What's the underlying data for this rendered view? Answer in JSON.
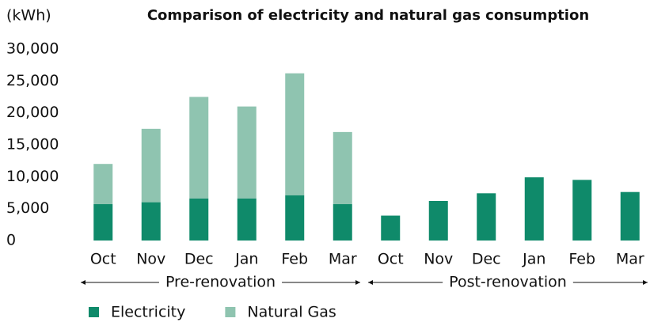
{
  "chart_data": {
    "type": "stacked_bar",
    "title": "Comparison of electricity and natural gas consumption",
    "y_label": "(kWh)",
    "categories": [
      "Oct",
      "Nov",
      "Dec",
      "Jan",
      "Feb",
      "Mar",
      "Oct",
      "Nov",
      "Dec",
      "Jan",
      "Feb",
      "Mar"
    ],
    "groups": [
      "Pre-renovation",
      "Post-renovation"
    ],
    "series": [
      {
        "name": "Electricity",
        "color": "#0f8a6a",
        "values": [
          5700,
          6000,
          6600,
          6600,
          7100,
          5700,
          3900,
          6200,
          7400,
          9900,
          9500,
          7600
        ]
      },
      {
        "name": "Natural Gas",
        "color": "#8fc4b0",
        "values": [
          6300,
          11500,
          15900,
          14400,
          19100,
          11300,
          null,
          null,
          null,
          null,
          null,
          null
        ]
      }
    ],
    "ylim": [
      0,
      30000
    ],
    "yticks": [
      0,
      {
        "value": 5000,
        "label": "5,000"
      },
      {
        "value": 10000,
        "label": "10,000"
      },
      {
        "value": 15000,
        "label": "15,000"
      },
      {
        "value": 20000,
        "label": "20,000"
      },
      {
        "value": 25000,
        "label": "25,000"
      },
      {
        "value": 30000,
        "label": "30,000"
      }
    ],
    "grid": false,
    "legend": "bottom"
  }
}
